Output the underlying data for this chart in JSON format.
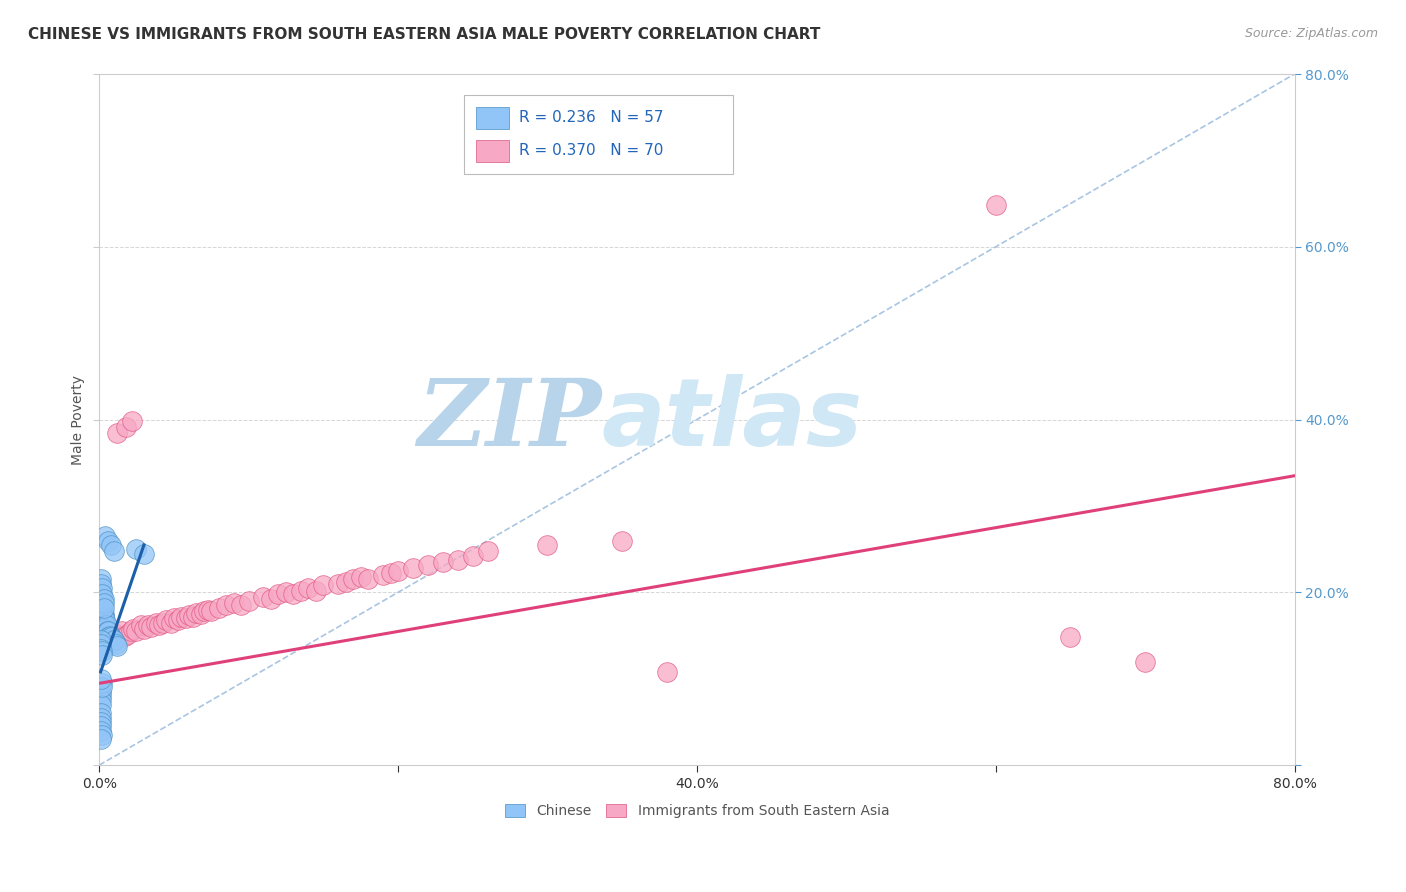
{
  "title": "CHINESE VS IMMIGRANTS FROM SOUTH EASTERN ASIA MALE POVERTY CORRELATION CHART",
  "source": "Source: ZipAtlas.com",
  "ylabel": "Male Poverty",
  "xlim": [
    0,
    0.8
  ],
  "ylim": [
    0,
    0.8
  ],
  "xticks": [
    0.0,
    0.2,
    0.4,
    0.6,
    0.8
  ],
  "yticks": [
    0.0,
    0.2,
    0.4,
    0.6,
    0.8
  ],
  "xticklabels": [
    "0.0%",
    "",
    "40.0%",
    "",
    "80.0%"
  ],
  "yticklabels_right": [
    "",
    "20.0%",
    "40.0%",
    "60.0%",
    "80.0%"
  ],
  "legend_r_blue": "R = 0.236",
  "legend_n_blue": "N = 57",
  "legend_r_pink": "R = 0.370",
  "legend_n_pink": "N = 70",
  "legend_label_blue": "Chinese",
  "legend_label_pink": "Immigrants from South Eastern Asia",
  "blue_scatter_x": [
    0.001,
    0.001,
    0.001,
    0.002,
    0.002,
    0.002,
    0.002,
    0.003,
    0.003,
    0.003,
    0.004,
    0.004,
    0.004,
    0.005,
    0.005,
    0.005,
    0.006,
    0.006,
    0.007,
    0.007,
    0.008,
    0.009,
    0.01,
    0.011,
    0.012,
    0.001,
    0.001,
    0.001,
    0.002,
    0.002,
    0.001,
    0.001,
    0.002,
    0.002,
    0.003,
    0.003,
    0.003,
    0.001,
    0.001,
    0.001,
    0.001,
    0.002,
    0.002,
    0.001,
    0.001,
    0.001,
    0.001,
    0.001,
    0.002,
    0.001,
    0.004,
    0.006,
    0.008,
    0.01,
    0.025,
    0.03,
    0.001
  ],
  "blue_scatter_y": [
    0.19,
    0.18,
    0.2,
    0.195,
    0.185,
    0.175,
    0.165,
    0.175,
    0.165,
    0.172,
    0.168,
    0.162,
    0.158,
    0.162,
    0.155,
    0.15,
    0.155,
    0.148,
    0.15,
    0.145,
    0.148,
    0.142,
    0.145,
    0.14,
    0.138,
    0.145,
    0.14,
    0.135,
    0.132,
    0.128,
    0.215,
    0.21,
    0.205,
    0.198,
    0.192,
    0.188,
    0.182,
    0.085,
    0.08,
    0.075,
    0.07,
    0.095,
    0.09,
    0.06,
    0.055,
    0.05,
    0.045,
    0.04,
    0.035,
    0.03,
    0.265,
    0.26,
    0.255,
    0.248,
    0.25,
    0.245,
    0.1
  ],
  "pink_scatter_x": [
    0.001,
    0.003,
    0.005,
    0.007,
    0.009,
    0.011,
    0.013,
    0.015,
    0.017,
    0.019,
    0.021,
    0.023,
    0.025,
    0.028,
    0.03,
    0.033,
    0.035,
    0.038,
    0.04,
    0.043,
    0.045,
    0.048,
    0.05,
    0.053,
    0.055,
    0.058,
    0.06,
    0.063,
    0.065,
    0.068,
    0.07,
    0.073,
    0.075,
    0.08,
    0.085,
    0.09,
    0.095,
    0.1,
    0.11,
    0.115,
    0.12,
    0.125,
    0.13,
    0.135,
    0.14,
    0.145,
    0.15,
    0.16,
    0.165,
    0.17,
    0.175,
    0.18,
    0.19,
    0.195,
    0.2,
    0.21,
    0.22,
    0.23,
    0.24,
    0.25,
    0.012,
    0.018,
    0.022,
    0.26,
    0.3,
    0.35,
    0.6,
    0.7,
    0.65,
    0.38
  ],
  "pink_scatter_y": [
    0.14,
    0.142,
    0.145,
    0.148,
    0.15,
    0.152,
    0.148,
    0.155,
    0.15,
    0.152,
    0.155,
    0.158,
    0.155,
    0.162,
    0.158,
    0.162,
    0.16,
    0.165,
    0.162,
    0.165,
    0.168,
    0.165,
    0.17,
    0.168,
    0.172,
    0.17,
    0.174,
    0.172,
    0.176,
    0.175,
    0.178,
    0.18,
    0.178,
    0.182,
    0.185,
    0.188,
    0.185,
    0.19,
    0.195,
    0.192,
    0.198,
    0.2,
    0.198,
    0.202,
    0.205,
    0.202,
    0.208,
    0.21,
    0.212,
    0.215,
    0.218,
    0.215,
    0.22,
    0.222,
    0.225,
    0.228,
    0.232,
    0.235,
    0.238,
    0.242,
    0.385,
    0.392,
    0.398,
    0.248,
    0.255,
    0.26,
    0.648,
    0.12,
    0.148,
    0.108
  ],
  "blue_trend_x": [
    0.001,
    0.03
  ],
  "blue_trend_y": [
    0.108,
    0.255
  ],
  "pink_trend_x": [
    0.001,
    0.8
  ],
  "pink_trend_y": [
    0.095,
    0.335
  ],
  "blue_color": "#92C5F7",
  "pink_color": "#F7A8C4",
  "blue_edge_color": "#4A90C4",
  "pink_edge_color": "#E05580",
  "blue_line_color": "#1A5FA8",
  "pink_line_color": "#E0407A",
  "diag_color": "#99BBDD",
  "background_color": "#FFFFFF",
  "watermark_zip": "ZIP",
  "watermark_atlas": "atlas",
  "watermark_color": "#C8DFF0"
}
